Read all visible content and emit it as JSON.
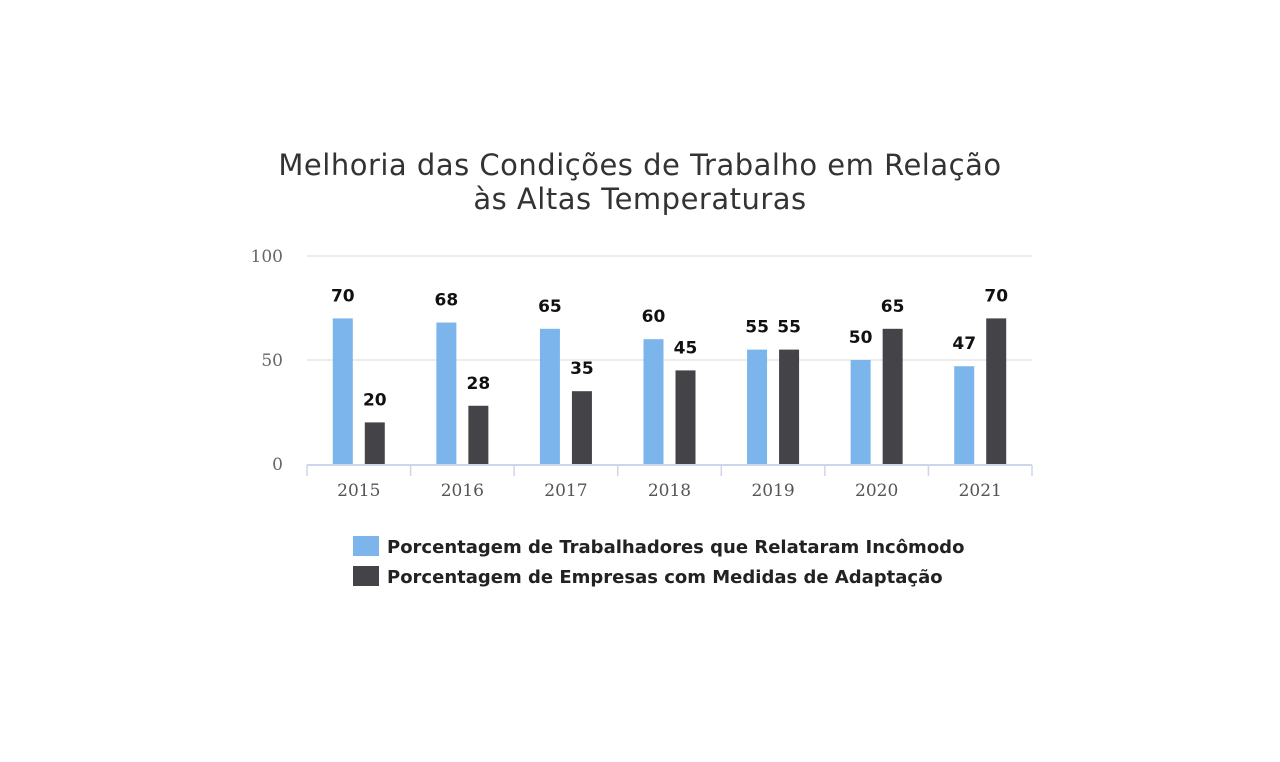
{
  "chart_data": {
    "type": "bar",
    "title": [
      "Melhoria das Condições de Trabalho em Relação",
      "às Altas Temperaturas"
    ],
    "xlabel": "",
    "ylabel": "",
    "categories": [
      "2015",
      "2016",
      "2017",
      "2018",
      "2019",
      "2020",
      "2021"
    ],
    "series": [
      {
        "name": "Porcentagem de Trabalhadores que Relataram Incômodo",
        "color": "#7cb5ec",
        "values": [
          70,
          68,
          65,
          60,
          55,
          50,
          47
        ]
      },
      {
        "name": "Porcentagem de Empresas com Medidas de Adaptação",
        "color": "#434348",
        "values": [
          20,
          28,
          35,
          45,
          55,
          65,
          70
        ]
      }
    ],
    "ylim": [
      0,
      100
    ],
    "yticks": [
      "0",
      "50",
      "100"
    ],
    "grid": true,
    "data_labels": true,
    "legend_position": "bottom-center",
    "axis_color": "#ccd6eb",
    "grid_color": "#e6e6e6"
  }
}
